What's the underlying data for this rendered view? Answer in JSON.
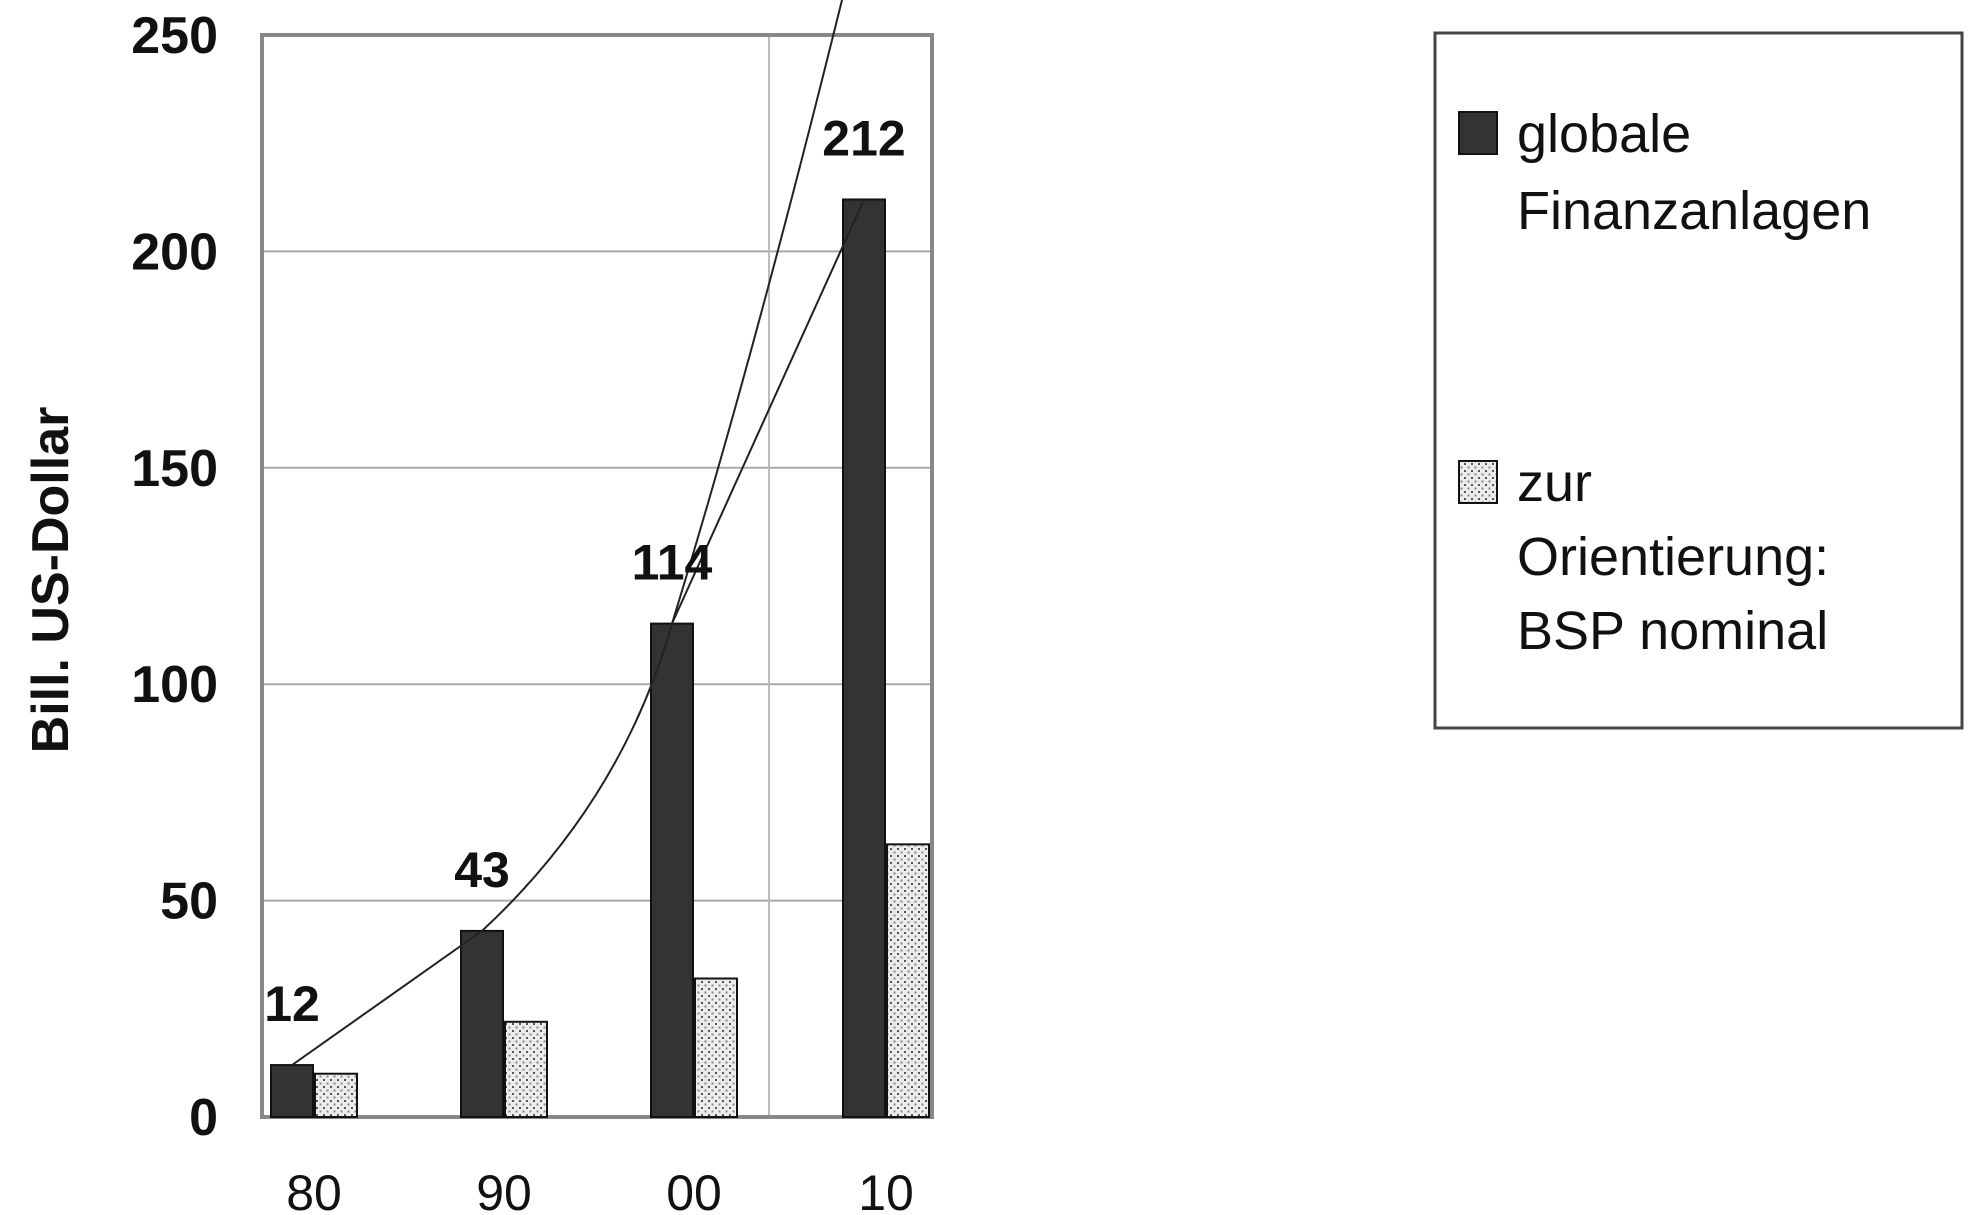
{
  "chart_data": {
    "type": "bar",
    "title": "",
    "xlabel": "",
    "ylabel": "Bill. US-Dollar",
    "ylim": [
      0,
      250
    ],
    "yticks": [
      0,
      50,
      100,
      150,
      200,
      250
    ],
    "grid": true,
    "categories": [
      "80",
      "90",
      "00",
      "10"
    ],
    "series": [
      {
        "name": "globale Finanzanlagen",
        "values": [
          12,
          43,
          114,
          212
        ],
        "color": "#333333",
        "fill": "solid",
        "labels": [
          "12",
          "43",
          "114",
          "212"
        ]
      },
      {
        "name": "zur Orientierung: BSP nominal",
        "values": [
          10,
          22,
          32,
          63
        ],
        "color": "#dddddd",
        "fill": "dotted"
      }
    ],
    "legend": {
      "position": "right",
      "entries": [
        [
          "globale",
          "Finanzanlagen"
        ],
        [
          "zur",
          "Orientierung:",
          "BSP nominal"
        ]
      ]
    },
    "annotations": [
      "exponential trend curves through the solid bar tops"
    ]
  }
}
